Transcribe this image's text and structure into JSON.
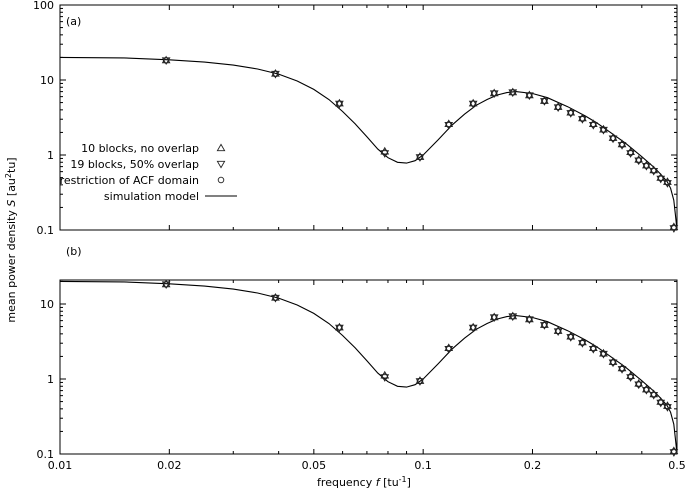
{
  "chart_data": {
    "type": "scatter",
    "xlabel": "frequency f [tu⁻¹]",
    "xlabel_main": "frequency",
    "xlabel_var": "f",
    "xlabel_unit": " [tu",
    "xlabel_sup": "-1",
    "xlabel_close": "]",
    "ylabel": "mean power density S [au²tu]",
    "ylabel_main": "mean power density",
    "ylabel_var": "S",
    "ylabel_unit": " [au",
    "ylabel_sup": "2",
    "ylabel_close": "tu]",
    "x_scale": "log",
    "y_scale": "log",
    "xlim": [
      0.01,
      0.5
    ],
    "ylim": [
      0.1,
      100
    ],
    "x_ticks": [
      0.01,
      0.02,
      0.05,
      0.1,
      0.2,
      0.5
    ],
    "x_tick_labels": [
      "0.01",
      "0.02",
      "0.05",
      "0.1",
      "0.2",
      "0.5"
    ],
    "y_ticks_a": [
      0.1,
      1,
      10,
      100
    ],
    "y_tick_labels_a": [
      "0.1",
      "1",
      "10",
      "100"
    ],
    "y_ticks_b": [
      0.1,
      1,
      10
    ],
    "y_tick_labels_b": [
      "0.1",
      "1",
      "10"
    ],
    "legend_position": "left, middle of panel (a)",
    "legend": [
      {
        "label": "10 blocks, no overlap",
        "symbol": "triangle-up"
      },
      {
        "label": "19 blocks, 50% overlap",
        "symbol": "triangle-down"
      },
      {
        "label": "restriction of ACF domain",
        "symbol": "circle"
      },
      {
        "label": "simulation model",
        "symbol": "line"
      }
    ],
    "panels": [
      {
        "label": "(a)",
        "series": [
          {
            "name": "10 blocks, no overlap",
            "x": [
              0.0196,
              0.0392,
              0.0588,
              0.0784,
              0.098,
              0.1176,
              0.1373,
              0.1569,
              0.1765,
              0.1961,
              0.2157,
              0.2353,
              0.2549,
              0.2745,
              0.2941,
              0.3137,
              0.3333,
              0.3529,
              0.3725,
              0.3922,
              0.4118,
              0.4314,
              0.451,
              0.4706,
              0.4902
            ],
            "y": [
              18.4,
              12.2,
              4.9,
              1.12,
              0.95,
              2.6,
              4.9,
              6.7,
              6.9,
              6.3,
              5.3,
              4.4,
              3.7,
              3.1,
              2.6,
              2.2,
              1.7,
              1.4,
              1.1,
              0.87,
              0.73,
              0.63,
              0.5,
              0.44,
              0.11
            ]
          },
          {
            "name": "19 blocks, 50% overlap",
            "x": [
              0.0196,
              0.0392,
              0.0588,
              0.0784,
              0.098,
              0.1176,
              0.1373,
              0.1569,
              0.1765,
              0.1961,
              0.2157,
              0.2353,
              0.2549,
              0.2745,
              0.2941,
              0.3137,
              0.3333,
              0.3529,
              0.3725,
              0.3922,
              0.4118,
              0.4314,
              0.451,
              0.4706,
              0.4902
            ],
            "y": [
              18.2,
              12.0,
              4.8,
              1.05,
              0.93,
              2.5,
              4.8,
              6.6,
              6.8,
              6.2,
              5.2,
              4.3,
              3.6,
              3.0,
              2.5,
              2.15,
              1.65,
              1.35,
              1.05,
              0.84,
              0.71,
              0.61,
              0.48,
              0.42,
              0.105
            ]
          },
          {
            "name": "restriction of ACF domain",
            "x": [
              0.0196,
              0.0392,
              0.0588,
              0.0784,
              0.098,
              0.1176,
              0.1373,
              0.1569,
              0.1765,
              0.1961,
              0.2157,
              0.2353,
              0.2549,
              0.2745,
              0.2941,
              0.3137,
              0.3333,
              0.3529,
              0.3725,
              0.3922,
              0.4118,
              0.4314,
              0.451,
              0.4706,
              0.4902
            ],
            "y": [
              18.3,
              12.1,
              4.85,
              1.08,
              0.94,
              2.55,
              4.85,
              6.65,
              6.85,
              6.25,
              5.25,
              4.35,
              3.65,
              3.05,
              2.55,
              2.17,
              1.67,
              1.37,
              1.07,
              0.85,
              0.72,
              0.62,
              0.49,
              0.43,
              0.108
            ]
          },
          {
            "name": "simulation model",
            "x": [
              0.01,
              0.015,
              0.02,
              0.025,
              0.03,
              0.035,
              0.04,
              0.045,
              0.05,
              0.055,
              0.06,
              0.065,
              0.07,
              0.075,
              0.08,
              0.085,
              0.09,
              0.095,
              0.1,
              0.11,
              0.12,
              0.13,
              0.14,
              0.15,
              0.16,
              0.17,
              0.18,
              0.2,
              0.22,
              0.25,
              0.28,
              0.3,
              0.33,
              0.36,
              0.4,
              0.43,
              0.45,
              0.47,
              0.48,
              0.49,
              0.495,
              0.5
            ],
            "y": [
              20.0,
              19.7,
              18.6,
              17.3,
              15.8,
              14.0,
              12.0,
              9.7,
              7.5,
              5.5,
              3.8,
              2.6,
              1.75,
              1.2,
              0.92,
              0.8,
              0.78,
              0.84,
              1.0,
              1.6,
              2.5,
              3.5,
              4.6,
              5.5,
              6.3,
              6.8,
              7.0,
              6.6,
              5.8,
              4.4,
              3.3,
              2.7,
              1.95,
              1.45,
              0.95,
              0.7,
              0.56,
              0.44,
              0.36,
              0.25,
              0.16,
              0.1
            ]
          }
        ]
      },
      {
        "label": "(b)",
        "series": [
          {
            "name": "10 blocks, no overlap",
            "x": [
              0.0196,
              0.0392,
              0.0588,
              0.0784,
              0.098,
              0.1176,
              0.1373,
              0.1569,
              0.1765,
              0.1961,
              0.2157,
              0.2353,
              0.2549,
              0.2745,
              0.2941,
              0.3137,
              0.3333,
              0.3529,
              0.3725,
              0.3922,
              0.4118,
              0.4314,
              0.451,
              0.4706,
              0.4902
            ],
            "y": [
              18.4,
              12.2,
              4.9,
              1.12,
              0.95,
              2.6,
              4.9,
              6.7,
              6.9,
              6.3,
              5.3,
              4.4,
              3.7,
              3.1,
              2.6,
              2.2,
              1.7,
              1.4,
              1.1,
              0.87,
              0.73,
              0.63,
              0.5,
              0.44,
              0.11
            ]
          },
          {
            "name": "19 blocks, 50% overlap",
            "x": [
              0.0196,
              0.0392,
              0.0588,
              0.0784,
              0.098,
              0.1176,
              0.1373,
              0.1569,
              0.1765,
              0.1961,
              0.2157,
              0.2353,
              0.2549,
              0.2745,
              0.2941,
              0.3137,
              0.3333,
              0.3529,
              0.3725,
              0.3922,
              0.4118,
              0.4314,
              0.451,
              0.4706,
              0.4902
            ],
            "y": [
              18.2,
              12.0,
              4.8,
              1.05,
              0.93,
              2.5,
              4.8,
              6.6,
              6.8,
              6.2,
              5.2,
              4.3,
              3.6,
              3.0,
              2.5,
              2.15,
              1.65,
              1.35,
              1.05,
              0.84,
              0.71,
              0.61,
              0.48,
              0.42,
              0.105
            ]
          },
          {
            "name": "restriction of ACF domain",
            "x": [
              0.0196,
              0.0392,
              0.0588,
              0.0784,
              0.098,
              0.1176,
              0.1373,
              0.1569,
              0.1765,
              0.1961,
              0.2157,
              0.2353,
              0.2549,
              0.2745,
              0.2941,
              0.3137,
              0.3333,
              0.3529,
              0.3725,
              0.3922,
              0.4118,
              0.4314,
              0.451,
              0.4706,
              0.4902
            ],
            "y": [
              18.3,
              12.1,
              4.85,
              1.08,
              0.94,
              2.55,
              4.85,
              6.65,
              6.85,
              6.25,
              5.25,
              4.35,
              3.65,
              3.05,
              2.55,
              2.17,
              1.67,
              1.37,
              1.07,
              0.85,
              0.72,
              0.62,
              0.49,
              0.43,
              0.108
            ]
          },
          {
            "name": "simulation model",
            "x": [
              0.01,
              0.015,
              0.02,
              0.025,
              0.03,
              0.035,
              0.04,
              0.045,
              0.05,
              0.055,
              0.06,
              0.065,
              0.07,
              0.075,
              0.08,
              0.085,
              0.09,
              0.095,
              0.1,
              0.11,
              0.12,
              0.13,
              0.14,
              0.15,
              0.16,
              0.17,
              0.18,
              0.2,
              0.22,
              0.25,
              0.28,
              0.3,
              0.33,
              0.36,
              0.4,
              0.43,
              0.45,
              0.47,
              0.48,
              0.49,
              0.495,
              0.5
            ],
            "y": [
              20.0,
              19.7,
              18.6,
              17.3,
              15.8,
              14.0,
              12.0,
              9.7,
              7.5,
              5.5,
              3.8,
              2.6,
              1.75,
              1.2,
              0.92,
              0.8,
              0.78,
              0.84,
              1.0,
              1.6,
              2.5,
              3.5,
              4.6,
              5.5,
              6.3,
              6.8,
              7.0,
              6.6,
              5.8,
              4.4,
              3.3,
              2.7,
              1.95,
              1.45,
              0.95,
              0.7,
              0.56,
              0.44,
              0.36,
              0.25,
              0.16,
              0.1
            ]
          }
        ]
      }
    ]
  }
}
